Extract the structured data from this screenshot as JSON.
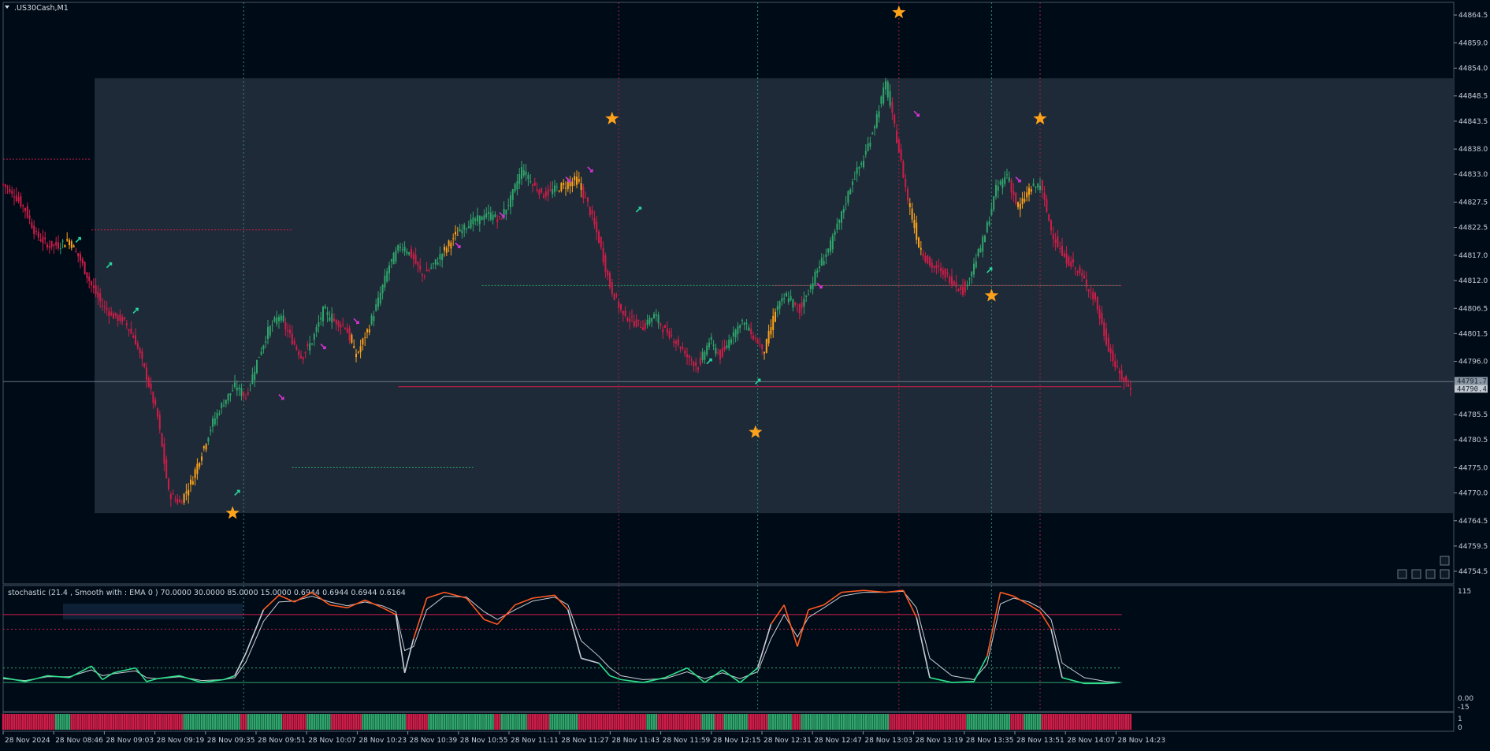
{
  "symbol": {
    "label": ".US30Cash,M1"
  },
  "indicator": {
    "label": "stochastic (21.4 , Smooth with : EMA  0 ) 70.0000 30.0000 85.0000 15.0000 0.6944 0.6944 0.6944 0.6164",
    "scale": [
      "115",
      "0.00",
      "-15"
    ]
  },
  "strip": {
    "scale": [
      "1",
      "0"
    ]
  },
  "price_axis": [
    "44864.5",
    "44859.0",
    "44854.0",
    "44848.5",
    "44843.5",
    "44838.0",
    "44833.0",
    "44827.5",
    "44822.5",
    "44817.0",
    "44812.0",
    "44806.5",
    "44801.5",
    "44796.0",
    "44785.5",
    "44780.5",
    "44775.0",
    "44770.0",
    "44764.5",
    "44759.5",
    "44754.5"
  ],
  "price_tags": {
    "bid": "44791.7",
    "ask": "44790.4"
  },
  "time_axis": [
    "28 Nov 2024",
    "28 Nov 08:46",
    "28 Nov 09:03",
    "28 Nov 09:19",
    "28 Nov 09:35",
    "28 Nov 09:51",
    "28 Nov 10:07",
    "28 Nov 10:23",
    "28 Nov 10:39",
    "28 Nov 10:55",
    "28 Nov 11:11",
    "28 Nov 11:27",
    "28 Nov 11:43",
    "28 Nov 11:59",
    "28 Nov 12:15",
    "28 Nov 12:31",
    "28 Nov 12:47",
    "28 Nov 13:03",
    "28 Nov 13:19",
    "28 Nov 13:35",
    "28 Nov 13:51",
    "28 Nov 14:07",
    "28 Nov 14:23"
  ],
  "colors": {
    "background": "#000b18",
    "zone": "#1e2a37",
    "bull": "#2fa66b",
    "bear": "#d11c48",
    "neutral": "#ffa21a",
    "star": "#ffa21a",
    "arrow_up": "#28d6a0",
    "arrow_down": "#d633d6",
    "stoch_main": "#ff5a1f",
    "stoch_signal": "#c9ced4",
    "stoch_low": "#2fe08c",
    "level_red": "#d11c48",
    "level_green": "#2fa66b",
    "vline_green": "#2b8c6e",
    "vline_red": "#b01c3c"
  },
  "chart_data": {
    "type": "candlestick",
    "timeframe": "M1",
    "y_range": [
      44752,
      44867
    ],
    "close_path": [
      [
        0,
        44831
      ],
      [
        5,
        44829
      ],
      [
        10,
        44826
      ],
      [
        15,
        44821
      ],
      [
        20,
        44819
      ],
      [
        25,
        44819
      ],
      [
        30,
        44820
      ],
      [
        35,
        44816
      ],
      [
        40,
        44811
      ],
      [
        45,
        44807
      ],
      [
        50,
        44805
      ],
      [
        55,
        44804
      ],
      [
        60,
        44800
      ],
      [
        65,
        44793
      ],
      [
        70,
        44785
      ],
      [
        75,
        44770
      ],
      [
        80,
        44768
      ],
      [
        85,
        44772
      ],
      [
        90,
        44778
      ],
      [
        95,
        44784
      ],
      [
        100,
        44788
      ],
      [
        105,
        44791
      ],
      [
        110,
        44789
      ],
      [
        115,
        44796
      ],
      [
        120,
        44802
      ],
      [
        125,
        44805
      ],
      [
        130,
        44801
      ],
      [
        135,
        44797
      ],
      [
        140,
        44800
      ],
      [
        145,
        44806
      ],
      [
        150,
        44804
      ],
      [
        155,
        44803
      ],
      [
        160,
        44797
      ],
      [
        165,
        44802
      ],
      [
        170,
        44808
      ],
      [
        175,
        44815
      ],
      [
        180,
        44819
      ],
      [
        185,
        44817
      ],
      [
        190,
        44813
      ],
      [
        195,
        44815
      ],
      [
        200,
        44818
      ],
      [
        205,
        44821
      ],
      [
        210,
        44823
      ],
      [
        215,
        44824
      ],
      [
        220,
        44825
      ],
      [
        225,
        44824
      ],
      [
        230,
        44828
      ],
      [
        235,
        44834
      ],
      [
        240,
        44831
      ],
      [
        245,
        44829
      ],
      [
        250,
        44830
      ],
      [
        255,
        44831
      ],
      [
        260,
        44832
      ],
      [
        265,
        44827
      ],
      [
        270,
        44820
      ],
      [
        275,
        44811
      ],
      [
        280,
        44806
      ],
      [
        285,
        44804
      ],
      [
        290,
        44803
      ],
      [
        295,
        44805
      ],
      [
        300,
        44802
      ],
      [
        305,
        44800
      ],
      [
        310,
        44797
      ],
      [
        315,
        44795
      ],
      [
        320,
        44800
      ],
      [
        325,
        44797
      ],
      [
        330,
        44801
      ],
      [
        335,
        44804
      ],
      [
        340,
        44801
      ],
      [
        345,
        44798
      ],
      [
        350,
        44806
      ],
      [
        355,
        44809
      ],
      [
        360,
        44806
      ],
      [
        365,
        44810
      ],
      [
        370,
        44815
      ],
      [
        375,
        44819
      ],
      [
        380,
        44825
      ],
      [
        385,
        44832
      ],
      [
        390,
        44836
      ],
      [
        395,
        44843
      ],
      [
        400,
        44851
      ],
      [
        405,
        44840
      ],
      [
        410,
        44828
      ],
      [
        415,
        44819
      ],
      [
        420,
        44815
      ],
      [
        425,
        44814
      ],
      [
        430,
        44812
      ],
      [
        435,
        44810
      ],
      [
        440,
        44815
      ],
      [
        445,
        44821
      ],
      [
        450,
        44830
      ],
      [
        455,
        44833
      ],
      [
        460,
        44826
      ],
      [
        465,
        44830
      ],
      [
        470,
        44831
      ],
      [
        475,
        44822
      ],
      [
        480,
        44817
      ],
      [
        485,
        44815
      ],
      [
        490,
        44812
      ],
      [
        495,
        44808
      ],
      [
        500,
        44800
      ],
      [
        505,
        44794
      ],
      [
        510,
        44791
      ]
    ],
    "levels": [
      {
        "price": 44836,
        "color": "#d11c48",
        "style": "dotted"
      },
      {
        "price": 44822,
        "color": "#d11c48",
        "style": "dotted"
      },
      {
        "price": 44811,
        "color": "#2fa66b",
        "style": "dotted"
      },
      {
        "price": 44811,
        "color": "#d11c48",
        "style": "dotted"
      },
      {
        "price": 44775,
        "color": "#2fa66b",
        "style": "dotted"
      },
      {
        "price": 44791,
        "color": "#d11c48",
        "style": "solid"
      },
      {
        "price": 44792,
        "color": "#6c7886",
        "style": "solid"
      }
    ],
    "zone": {
      "price_top": 44852,
      "price_bottom": 44766
    },
    "stars": [
      {
        "bar": 104,
        "price": 44766
      },
      {
        "bar": 276,
        "price": 44844
      },
      {
        "bar": 341,
        "price": 44782
      },
      {
        "bar": 406,
        "price": 44865
      },
      {
        "bar": 448,
        "price": 44809
      },
      {
        "bar": 470,
        "price": 44844
      }
    ],
    "stochastic": {
      "levels": [
        85,
        70,
        30,
        15
      ],
      "main": [
        [
          0,
          20
        ],
        [
          10,
          16
        ],
        [
          20,
          22
        ],
        [
          30,
          20
        ],
        [
          40,
          32
        ],
        [
          45,
          18
        ],
        [
          50,
          25
        ],
        [
          60,
          30
        ],
        [
          65,
          16
        ],
        [
          70,
          19
        ],
        [
          80,
          22
        ],
        [
          90,
          15
        ],
        [
          100,
          18
        ],
        [
          105,
          22
        ],
        [
          110,
          45
        ],
        [
          118,
          90
        ],
        [
          125,
          105
        ],
        [
          132,
          98
        ],
        [
          140,
          108
        ],
        [
          148,
          95
        ],
        [
          156,
          92
        ],
        [
          164,
          100
        ],
        [
          172,
          92
        ],
        [
          178,
          85
        ],
        [
          182,
          25
        ],
        [
          186,
          60
        ],
        [
          192,
          102
        ],
        [
          200,
          108
        ],
        [
          210,
          102
        ],
        [
          218,
          80
        ],
        [
          224,
          75
        ],
        [
          232,
          95
        ],
        [
          240,
          102
        ],
        [
          250,
          105
        ],
        [
          256,
          90
        ],
        [
          262,
          40
        ],
        [
          270,
          35
        ],
        [
          275,
          22
        ],
        [
          280,
          18
        ],
        [
          290,
          15
        ],
        [
          300,
          20
        ],
        [
          310,
          30
        ],
        [
          318,
          15
        ],
        [
          326,
          28
        ],
        [
          334,
          15
        ],
        [
          342,
          30
        ],
        [
          348,
          75
        ],
        [
          354,
          95
        ],
        [
          360,
          52
        ],
        [
          365,
          90
        ],
        [
          372,
          95
        ],
        [
          380,
          108
        ],
        [
          390,
          110
        ],
        [
          400,
          108
        ],
        [
          408,
          110
        ],
        [
          414,
          82
        ],
        [
          420,
          20
        ],
        [
          430,
          15
        ],
        [
          440,
          16
        ],
        [
          446,
          42
        ],
        [
          452,
          108
        ],
        [
          458,
          104
        ],
        [
          465,
          95
        ],
        [
          470,
          88
        ],
        [
          475,
          70
        ],
        [
          480,
          20
        ],
        [
          490,
          14
        ],
        [
          500,
          14
        ],
        [
          506,
          15
        ]
      ],
      "signal": [
        [
          0,
          19
        ],
        [
          10,
          17
        ],
        [
          20,
          21
        ],
        [
          30,
          21
        ],
        [
          40,
          28
        ],
        [
          45,
          22
        ],
        [
          50,
          24
        ],
        [
          60,
          27
        ],
        [
          65,
          20
        ],
        [
          70,
          19
        ],
        [
          80,
          21
        ],
        [
          90,
          17
        ],
        [
          100,
          18
        ],
        [
          105,
          20
        ],
        [
          110,
          36
        ],
        [
          118,
          78
        ],
        [
          125,
          98
        ],
        [
          132,
          99
        ],
        [
          140,
          104
        ],
        [
          148,
          98
        ],
        [
          156,
          94
        ],
        [
          164,
          98
        ],
        [
          172,
          94
        ],
        [
          178,
          88
        ],
        [
          182,
          48
        ],
        [
          186,
          52
        ],
        [
          192,
          90
        ],
        [
          200,
          104
        ],
        [
          210,
          103
        ],
        [
          218,
          88
        ],
        [
          224,
          80
        ],
        [
          232,
          90
        ],
        [
          240,
          99
        ],
        [
          250,
          103
        ],
        [
          256,
          95
        ],
        [
          262,
          58
        ],
        [
          270,
          42
        ],
        [
          275,
          30
        ],
        [
          280,
          22
        ],
        [
          290,
          18
        ],
        [
          300,
          19
        ],
        [
          310,
          26
        ],
        [
          318,
          19
        ],
        [
          326,
          25
        ],
        [
          334,
          19
        ],
        [
          342,
          26
        ],
        [
          348,
          60
        ],
        [
          354,
          85
        ],
        [
          360,
          62
        ],
        [
          365,
          82
        ],
        [
          372,
          92
        ],
        [
          380,
          104
        ],
        [
          390,
          108
        ],
        [
          400,
          108
        ],
        [
          408,
          109
        ],
        [
          414,
          92
        ],
        [
          420,
          40
        ],
        [
          430,
          22
        ],
        [
          440,
          18
        ],
        [
          446,
          34
        ],
        [
          452,
          96
        ],
        [
          458,
          102
        ],
        [
          465,
          98
        ],
        [
          470,
          92
        ],
        [
          475,
          80
        ],
        [
          480,
          35
        ],
        [
          490,
          20
        ],
        [
          500,
          16
        ],
        [
          506,
          15
        ]
      ]
    }
  }
}
